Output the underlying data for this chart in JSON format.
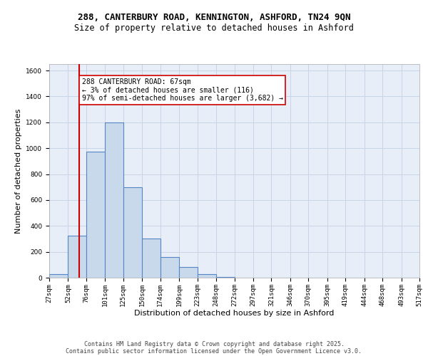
{
  "title1": "288, CANTERBURY ROAD, KENNINGTON, ASHFORD, TN24 9QN",
  "title2": "Size of property relative to detached houses in Ashford",
  "xlabel": "Distribution of detached houses by size in Ashford",
  "ylabel": "Number of detached properties",
  "bin_edges": [
    27,
    52,
    76,
    101,
    125,
    150,
    174,
    199,
    223,
    248,
    272,
    297,
    321,
    346,
    370,
    395,
    419,
    444,
    468,
    493,
    517
  ],
  "bar_heights": [
    25,
    325,
    975,
    1200,
    700,
    300,
    160,
    80,
    25,
    5,
    0,
    0,
    0,
    0,
    0,
    0,
    0,
    0,
    0,
    0
  ],
  "bar_facecolor": "#c9d9ec",
  "bar_edgecolor": "#5585c5",
  "bar_linewidth": 0.8,
  "grid_color": "#c8d4e8",
  "bg_color": "#e8eef8",
  "red_line_x": 67,
  "red_line_color": "#cc0000",
  "annotation_text": "288 CANTERBURY ROAD: 67sqm\n← 3% of detached houses are smaller (116)\n97% of semi-detached houses are larger (3,682) →",
  "annotation_box_color": "white",
  "annotation_box_edgecolor": "#cc0000",
  "ylim": [
    0,
    1650
  ],
  "yticks": [
    0,
    200,
    400,
    600,
    800,
    1000,
    1200,
    1400,
    1600
  ],
  "footer1": "Contains HM Land Registry data © Crown copyright and database right 2025.",
  "footer2": "Contains public sector information licensed under the Open Government Licence v3.0.",
  "title1_fontsize": 9,
  "title2_fontsize": 8.5,
  "axis_label_fontsize": 8,
  "tick_fontsize": 6.5,
  "footer_fontsize": 6,
  "annot_fontsize": 7
}
